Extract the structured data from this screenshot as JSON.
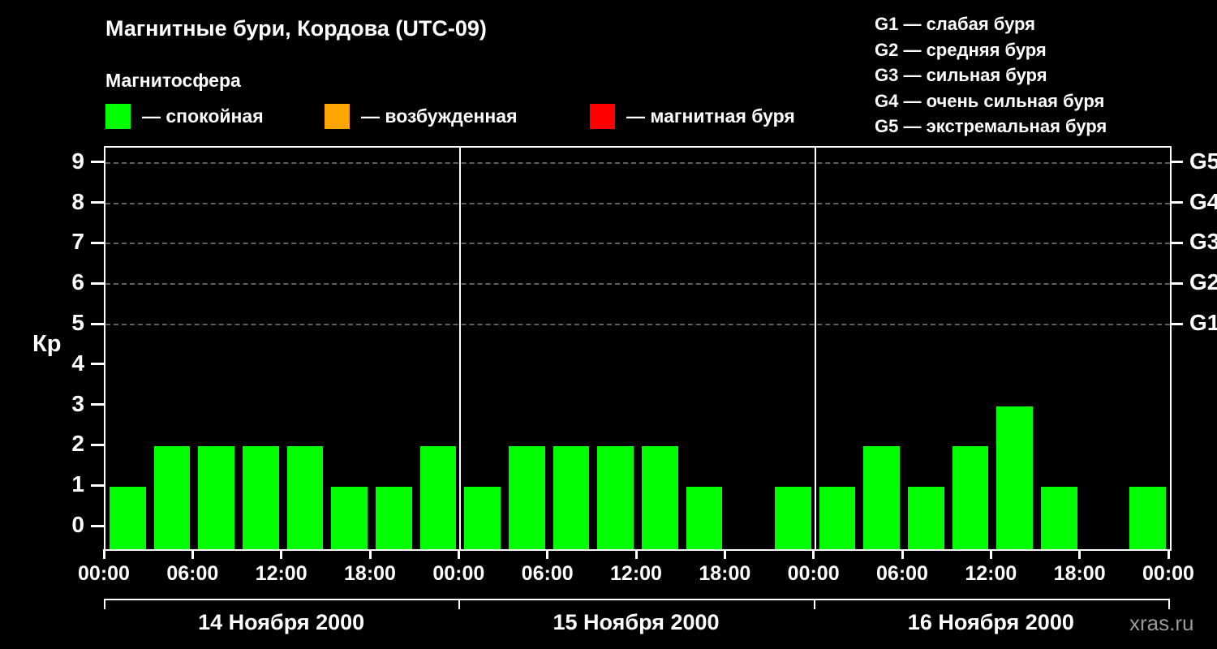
{
  "title": "Магнитные бури, Кордова (UTC-09)",
  "subtitle": "Магнитосфера",
  "ylabel": "Кр",
  "watermark": "xras.ru",
  "legend": [
    {
      "name": "quiet",
      "label": "— спокойная",
      "color": "#00ff00"
    },
    {
      "name": "excited",
      "label": "— возбужденная",
      "color": "#ffa500"
    },
    {
      "name": "storm",
      "label": "— магнитная буря",
      "color": "#ff0000"
    }
  ],
  "g_legend": [
    "G1 — слабая буря",
    "G2 — средняя буря",
    "G3 — сильная буря",
    "G4 — очень сильная буря",
    "G5 — экстремальная буря"
  ],
  "chart_data": {
    "type": "bar",
    "ylabel": "Кр",
    "ylim": [
      0,
      9.5
    ],
    "y_ticks": [
      0,
      1,
      2,
      3,
      4,
      5,
      6,
      7,
      8,
      9
    ],
    "grid_levels": [
      5,
      6,
      7,
      8,
      9
    ],
    "right_axis": [
      {
        "kp": 5,
        "label": "G1"
      },
      {
        "kp": 6,
        "label": "G2"
      },
      {
        "kp": 7,
        "label": "G3"
      },
      {
        "kp": 8,
        "label": "G4"
      },
      {
        "kp": 9,
        "label": "G5"
      }
    ],
    "x_tick_labels": [
      "00:00",
      "06:00",
      "12:00",
      "18:00",
      "00:00",
      "06:00",
      "12:00",
      "18:00",
      "00:00",
      "06:00",
      "12:00",
      "18:00",
      "00:00"
    ],
    "days": [
      "14 Ноября 2000",
      "15 Ноября 2000",
      "16 Ноября 2000"
    ],
    "values_per_day": 8,
    "interval_hours": 3,
    "series": [
      {
        "name": "Kp",
        "values": [
          1,
          2,
          2,
          2,
          2,
          1,
          1,
          2,
          1,
          2,
          2,
          2,
          2,
          1,
          0,
          1,
          1,
          2,
          1,
          2,
          3,
          1,
          0,
          1
        ]
      }
    ],
    "thresholds": {
      "quiet_max": 3,
      "excited_max": 4
    },
    "colors": {
      "quiet": "#00ff00",
      "excited": "#ffa500",
      "storm": "#ff0000"
    }
  }
}
